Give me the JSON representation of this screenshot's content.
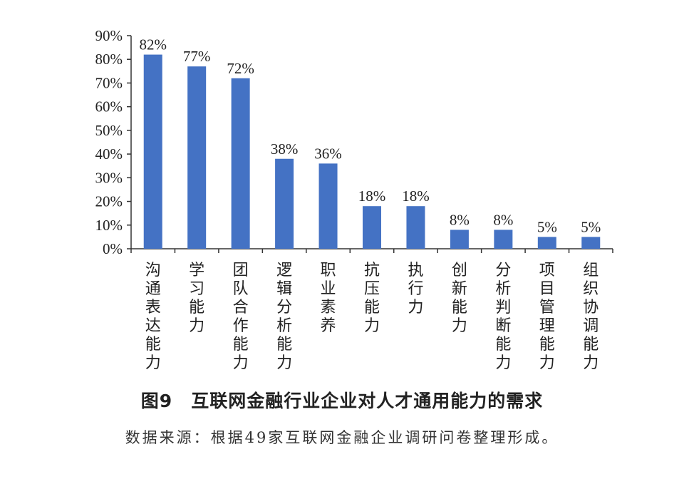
{
  "chart_data": {
    "type": "bar",
    "categories": [
      "沟通表达能力",
      "学习能力",
      "团队合作能力",
      "逻辑分析能力",
      "职业素养",
      "抗压能力",
      "执行力",
      "创新能力",
      "分析判断能力",
      "项目管理能力",
      "组织协调能力"
    ],
    "values": [
      82,
      77,
      72,
      38,
      36,
      18,
      18,
      8,
      8,
      5,
      5
    ],
    "data_labels": [
      "82%",
      "77%",
      "72%",
      "38%",
      "36%",
      "18%",
      "18%",
      "8%",
      "8%",
      "5%",
      "5%"
    ],
    "ylim": [
      0,
      90
    ],
    "yticks": [
      0,
      10,
      20,
      30,
      40,
      50,
      60,
      70,
      80,
      90
    ],
    "ytick_labels": [
      "0%",
      "10%",
      "20%",
      "30%",
      "40%",
      "50%",
      "60%",
      "70%",
      "80%",
      "90%"
    ],
    "grid": false,
    "bar_color": "#4472C4",
    "title": "图9　互联网金融行业企业对人才通用能力的需求",
    "source": "数据来源：根据49家互联网金融企业调研问卷整理形成。"
  }
}
